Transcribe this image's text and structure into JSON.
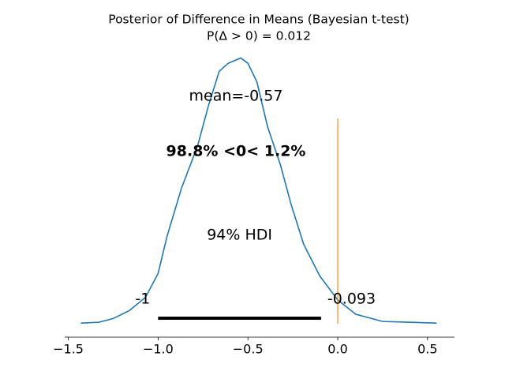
{
  "chart_data": {
    "type": "density",
    "title": "Posterior of Difference in Means (Bayesian t-test)",
    "subtitle": "P(Δ > 0) = 0.012",
    "x": [
      -1.43,
      -1.33,
      -1.25,
      -1.16,
      -1.07,
      -1.0,
      -0.95,
      -0.87,
      -0.78,
      -0.72,
      -0.66,
      -0.61,
      -0.54,
      -0.5,
      -0.45,
      -0.39,
      -0.32,
      -0.26,
      -0.19,
      -0.1,
      0.0,
      0.1,
      0.25,
      0.41,
      0.55
    ],
    "series": [
      {
        "color": "#1f77b4",
        "values": [
          0.003,
          0.006,
          0.02,
          0.05,
          0.1,
          0.19,
          0.33,
          0.51,
          0.67,
          0.82,
          0.95,
          0.98,
          1.0,
          0.98,
          0.91,
          0.74,
          0.6,
          0.45,
          0.3,
          0.18,
          0.09,
          0.036,
          0.009,
          0.006,
          0.003
        ]
      }
    ],
    "xlim": [
      -1.52,
      0.65
    ],
    "ylim": [
      -0.05,
      1.04
    ],
    "xticks": [
      {
        "value": -1.5,
        "label": "−1.5"
      },
      {
        "value": -1.0,
        "label": "−1.0"
      },
      {
        "value": -0.5,
        "label": "−0.5"
      },
      {
        "value": 0.0,
        "label": "0.0"
      },
      {
        "value": 0.5,
        "label": "0.5"
      }
    ],
    "mean_label": "mean=-0.57",
    "reference": {
      "value": 0,
      "color": "#ff7f0e",
      "label": "98.8% <0< 1.2%"
    },
    "hdi": {
      "label": "94% HDI",
      "bounds": [
        {
          "value": -1,
          "label": "-1"
        },
        {
          "value": -0.093,
          "label": "-0.093"
        }
      ]
    }
  }
}
